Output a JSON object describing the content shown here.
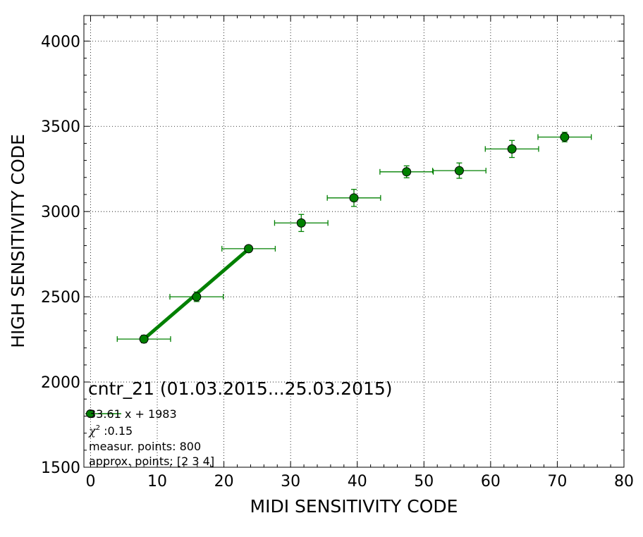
{
  "chart_data": {
    "type": "scatter",
    "title": "cntr_21 (01.03.2015...25.03.2015)",
    "xlabel": "MIDI SENSITIVITY CODE",
    "ylabel": "HIGH SENSITIVITY CODE",
    "xlim": [
      -1,
      80
    ],
    "ylim": [
      1500,
      4150
    ],
    "xticks": [
      0,
      10,
      20,
      30,
      40,
      50,
      60,
      70,
      80
    ],
    "yticks": [
      1500,
      2000,
      2500,
      3000,
      3500,
      4000
    ],
    "grid": true,
    "points": {
      "x": [
        8.0,
        15.9,
        23.7,
        31.6,
        39.5,
        47.4,
        55.3,
        63.2,
        71.1
      ],
      "y": [
        2252,
        2500,
        2782,
        2933,
        3080,
        3233,
        3240,
        3367,
        3437
      ],
      "xerr": [
        4.0,
        4.0,
        4.0,
        4.0,
        4.0,
        4.0,
        4.0,
        4.0,
        4.0
      ],
      "yerr": [
        22,
        28,
        15,
        50,
        50,
        35,
        45,
        50,
        28
      ]
    },
    "fit": {
      "slope": 33.61,
      "intercept": 1983,
      "x_range": [
        8.0,
        23.7
      ]
    },
    "annotations": {
      "legend_entry": "33.61 x + 1983",
      "chi_label": "χ",
      "chi_exp": "2",
      "chi_value": " :0.15",
      "measur_points": "measur. points: 800",
      "approx_points": "approx. points: [2 3 4]"
    },
    "colors": {
      "marker": "#008000",
      "marker_edge": "#000000",
      "errorbar": "#008000",
      "fit_line": "#008000"
    }
  }
}
